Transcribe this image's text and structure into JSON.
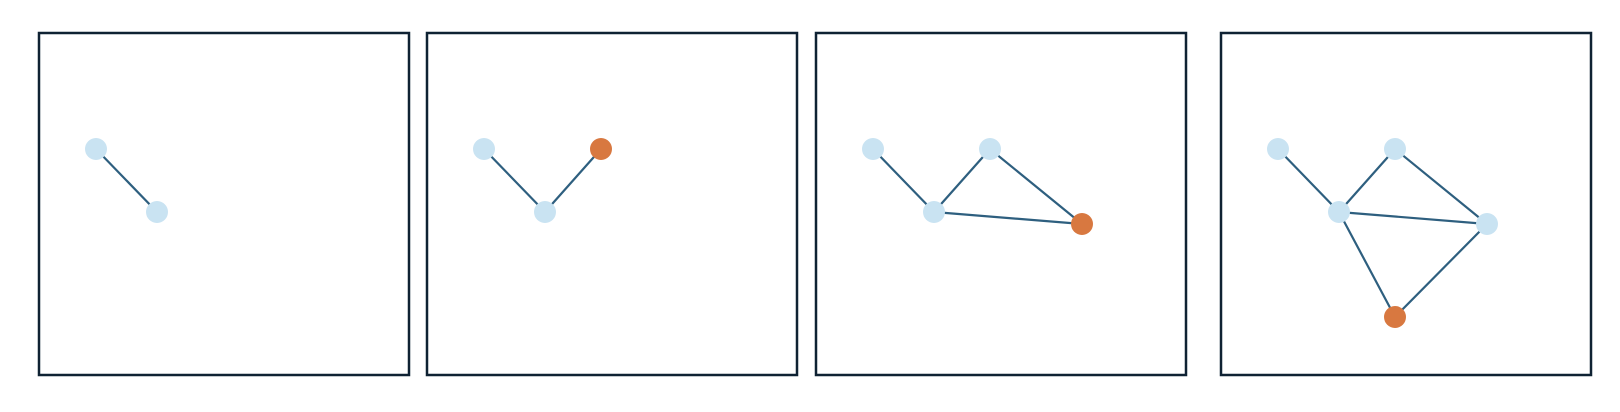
{
  "colors": {
    "background": "#ffffff",
    "frame": "#0f2233",
    "edge": "#2e5f7f",
    "node_existing": "#c9e3f2",
    "node_new": "#d87840"
  },
  "steps": [
    {
      "nodes": [
        {
          "id": "a",
          "state": "existing"
        },
        {
          "id": "b",
          "state": "existing"
        }
      ],
      "edges": [
        [
          "a",
          "b"
        ]
      ]
    },
    {
      "nodes": [
        {
          "id": "a",
          "state": "existing"
        },
        {
          "id": "b",
          "state": "existing"
        },
        {
          "id": "c",
          "state": "new"
        }
      ],
      "edges": [
        [
          "a",
          "b"
        ],
        [
          "b",
          "c"
        ]
      ]
    },
    {
      "nodes": [
        {
          "id": "a",
          "state": "existing"
        },
        {
          "id": "b",
          "state": "existing"
        },
        {
          "id": "c",
          "state": "existing"
        },
        {
          "id": "d",
          "state": "new"
        }
      ],
      "edges": [
        [
          "a",
          "b"
        ],
        [
          "b",
          "c"
        ],
        [
          "c",
          "d"
        ],
        [
          "b",
          "d"
        ]
      ]
    },
    {
      "nodes": [
        {
          "id": "a",
          "state": "existing"
        },
        {
          "id": "b",
          "state": "existing"
        },
        {
          "id": "c",
          "state": "existing"
        },
        {
          "id": "d",
          "state": "existing"
        },
        {
          "id": "e",
          "state": "new"
        }
      ],
      "edges": [
        [
          "a",
          "b"
        ],
        [
          "b",
          "c"
        ],
        [
          "c",
          "d"
        ],
        [
          "b",
          "d"
        ],
        [
          "b",
          "e"
        ],
        [
          "d",
          "e"
        ]
      ]
    }
  ]
}
